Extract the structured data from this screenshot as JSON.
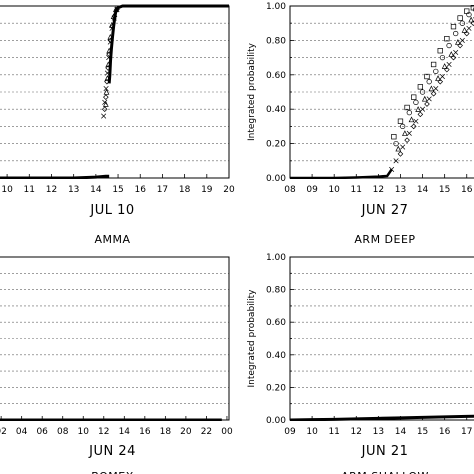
{
  "chart_data": [
    {
      "type": "scatter",
      "position": "top-left",
      "date": "JUL 10",
      "case": "AMMA",
      "ylabel": "",
      "xticks": [
        "10",
        "11",
        "12",
        "13",
        "14",
        "15",
        "16",
        "17",
        "18",
        "19",
        "20"
      ],
      "yticks": [],
      "xlim": [
        9.5,
        20
      ],
      "ylim": [
        0,
        1
      ],
      "grid": true,
      "markers": [
        "o",
        "□",
        "△",
        "◇",
        "×"
      ],
      "series": [
        {
          "values": [
            [
              9.5,
              0.0
            ],
            [
              10,
              0.0
            ],
            [
              11,
              0.0
            ],
            [
              12,
              0.0
            ],
            [
              13,
              0.0
            ],
            [
              14,
              0.005
            ],
            [
              14.45,
              0.01
            ],
            [
              14.6,
              0.01
            ]
          ]
        },
        {
          "values": [
            [
              14.6,
              0.55
            ],
            [
              14.63,
              0.6
            ],
            [
              14.66,
              0.68
            ],
            [
              14.7,
              0.75
            ],
            [
              14.75,
              0.82
            ],
            [
              14.8,
              0.88
            ],
            [
              14.85,
              0.93
            ],
            [
              14.9,
              0.97
            ],
            [
              15.0,
              0.99
            ],
            [
              15.2,
              1.0
            ],
            [
              16,
              1.0
            ],
            [
              17,
              1.0
            ],
            [
              18,
              1.0
            ],
            [
              19,
              1.0
            ],
            [
              20,
              1.0
            ]
          ]
        },
        {
          "values": [
            [
              14.45,
              0.43
            ],
            [
              14.48,
              0.5
            ],
            [
              14.52,
              0.58
            ],
            [
              14.56,
              0.66
            ],
            [
              14.6,
              0.74
            ],
            [
              14.65,
              0.82
            ],
            [
              14.72,
              0.89
            ],
            [
              14.8,
              0.94
            ],
            [
              14.9,
              0.98
            ]
          ]
        },
        {
          "values": [
            [
              14.4,
              0.4
            ],
            [
              14.45,
              0.47
            ],
            [
              14.5,
              0.56
            ],
            [
              14.55,
              0.64
            ],
            [
              14.6,
              0.72
            ],
            [
              14.66,
              0.8
            ],
            [
              14.74,
              0.88
            ],
            [
              14.84,
              0.94
            ],
            [
              14.95,
              0.98
            ]
          ]
        },
        {
          "values": [
            [
              14.35,
              0.36
            ],
            [
              14.4,
              0.44
            ],
            [
              14.46,
              0.52
            ],
            [
              14.52,
              0.61
            ],
            [
              14.58,
              0.7
            ],
            [
              14.65,
              0.79
            ],
            [
              14.73,
              0.87
            ],
            [
              14.83,
              0.93
            ],
            [
              14.95,
              0.98
            ]
          ]
        }
      ]
    },
    {
      "type": "scatter",
      "position": "top-right",
      "date": "JUN 27",
      "case": "ARM DEEP",
      "ylabel": "Integrated probability",
      "xticks": [
        "08",
        "09",
        "10",
        "11",
        "12",
        "13",
        "14",
        "15",
        "16"
      ],
      "yticks": [
        "0.00",
        "0.20",
        "0.40",
        "0.60",
        "0.80",
        "1.00"
      ],
      "xlim": [
        8,
        16.6
      ],
      "ylim": [
        0,
        1
      ],
      "grid": true,
      "markers": [
        "o",
        "□",
        "△",
        "◇",
        "×"
      ],
      "series": [
        {
          "values": [
            [
              12.8,
              0.2
            ],
            [
              13.1,
              0.3
            ],
            [
              13.4,
              0.38
            ],
            [
              13.7,
              0.44
            ],
            [
              14.0,
              0.5
            ],
            [
              14.3,
              0.56
            ],
            [
              14.6,
              0.62
            ],
            [
              14.9,
              0.7
            ],
            [
              15.2,
              0.77
            ],
            [
              15.5,
              0.84
            ],
            [
              15.8,
              0.9
            ],
            [
              16.1,
              0.95
            ],
            [
              16.4,
              0.98
            ]
          ]
        },
        {
          "values": [
            [
              12.7,
              0.24
            ],
            [
              13.0,
              0.33
            ],
            [
              13.3,
              0.41
            ],
            [
              13.6,
              0.47
            ],
            [
              13.9,
              0.53
            ],
            [
              14.2,
              0.59
            ],
            [
              14.5,
              0.66
            ],
            [
              14.8,
              0.74
            ],
            [
              15.1,
              0.81
            ],
            [
              15.4,
              0.88
            ],
            [
              15.7,
              0.93
            ],
            [
              16.0,
              0.97
            ],
            [
              16.3,
              0.99
            ]
          ]
        },
        {
          "values": [
            [
              12.9,
              0.17
            ],
            [
              13.2,
              0.26
            ],
            [
              13.5,
              0.34
            ],
            [
              13.8,
              0.4
            ],
            [
              14.1,
              0.46
            ],
            [
              14.4,
              0.52
            ],
            [
              14.7,
              0.58
            ],
            [
              15.0,
              0.65
            ],
            [
              15.3,
              0.72
            ],
            [
              15.6,
              0.79
            ],
            [
              15.9,
              0.86
            ],
            [
              16.2,
              0.92
            ],
            [
              16.5,
              0.96
            ]
          ]
        },
        {
          "values": [
            [
              13.0,
              0.14
            ],
            [
              13.3,
              0.22
            ],
            [
              13.6,
              0.3
            ],
            [
              13.9,
              0.37
            ],
            [
              14.2,
              0.43
            ],
            [
              14.5,
              0.49
            ],
            [
              14.8,
              0.56
            ],
            [
              15.1,
              0.63
            ],
            [
              15.4,
              0.7
            ],
            [
              15.7,
              0.77
            ],
            [
              16.0,
              0.84
            ],
            [
              16.3,
              0.9
            ]
          ]
        },
        {
          "values": [
            [
              12.6,
              0.05
            ],
            [
              12.8,
              0.1
            ],
            [
              13.1,
              0.18
            ],
            [
              13.4,
              0.26
            ],
            [
              13.7,
              0.33
            ],
            [
              14.0,
              0.4
            ],
            [
              14.3,
              0.46
            ],
            [
              14.6,
              0.52
            ],
            [
              14.9,
              0.59
            ],
            [
              15.2,
              0.66
            ],
            [
              15.5,
              0.73
            ],
            [
              15.8,
              0.8
            ],
            [
              16.1,
              0.87
            ],
            [
              16.4,
              0.92
            ]
          ]
        }
      ]
    },
    {
      "type": "scatter",
      "position": "bottom-left",
      "date": "JUN 24",
      "case": "BOMEX",
      "ylabel": "",
      "xticks": [
        "02",
        "04",
        "06",
        "08",
        "10",
        "12",
        "14",
        "16",
        "18",
        "20",
        "22",
        "00"
      ],
      "yticks": [],
      "xlim": [
        1.5,
        24.2
      ],
      "ylim": [
        0,
        1
      ],
      "grid": true,
      "markers": [
        "o",
        "□",
        "△",
        "◇",
        "×"
      ],
      "series": [
        {
          "values": [
            [
              1.5,
              0.0
            ],
            [
              4,
              0.0
            ],
            [
              8,
              0.0
            ],
            [
              12,
              0.0
            ],
            [
              16,
              0.0
            ],
            [
              20,
              0.0
            ],
            [
              23.5,
              0.0
            ]
          ]
        }
      ]
    },
    {
      "type": "scatter",
      "position": "bottom-right",
      "date": "JUN 21",
      "case": "ARM SHALLOW",
      "ylabel": "Integrated probability",
      "xticks": [
        "09",
        "10",
        "11",
        "12",
        "13",
        "14",
        "15",
        "16",
        "17"
      ],
      "yticks": [
        "0.00",
        "0.20",
        "0.40",
        "0.60",
        "0.80",
        "1.00"
      ],
      "xlim": [
        9,
        17.6
      ],
      "ylim": [
        0,
        1
      ],
      "grid": true,
      "markers": [
        "o",
        "□",
        "△",
        "◇",
        "×"
      ],
      "series": [
        {
          "values": [
            [
              9,
              0.0
            ],
            [
              10,
              0.002
            ],
            [
              11,
              0.004
            ],
            [
              12,
              0.007
            ],
            [
              13,
              0.01
            ],
            [
              14,
              0.013
            ],
            [
              15,
              0.016
            ],
            [
              16,
              0.019
            ],
            [
              17,
              0.022
            ],
            [
              17.6,
              0.024
            ]
          ]
        }
      ]
    }
  ]
}
